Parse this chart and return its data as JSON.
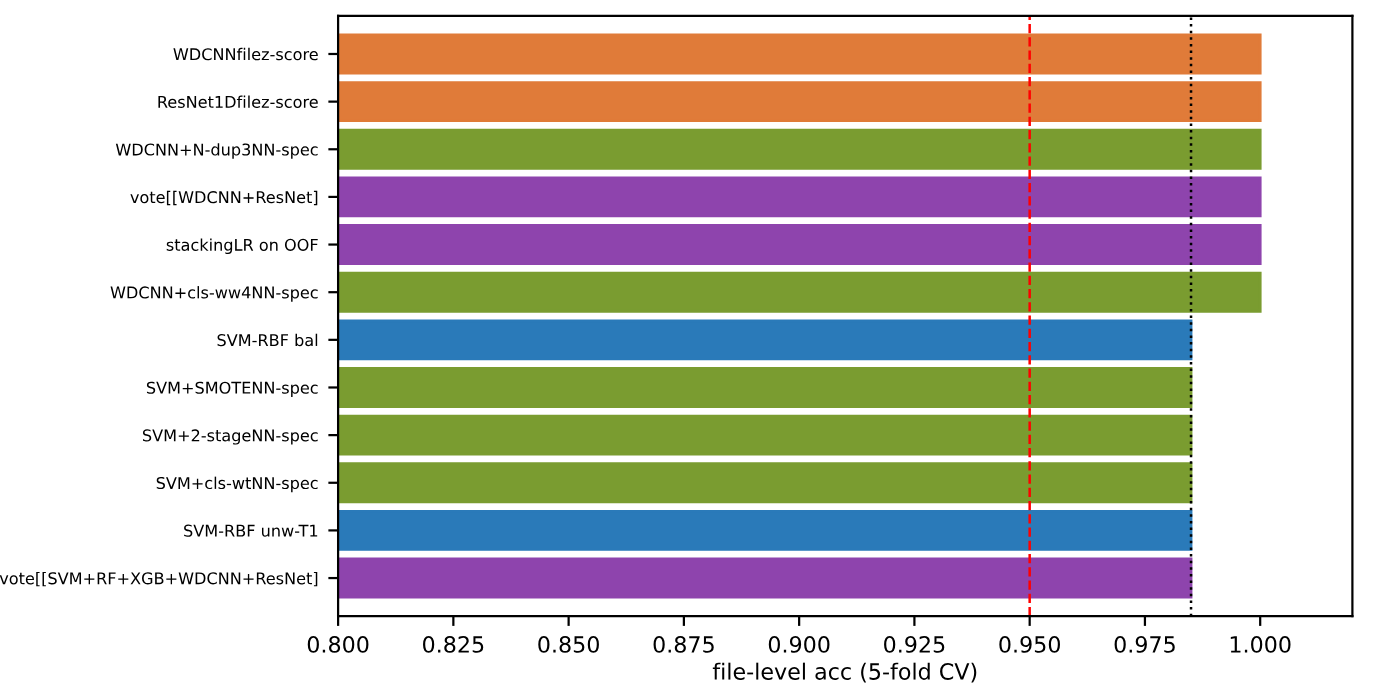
{
  "chart_data": {
    "type": "bar",
    "orientation": "horizontal",
    "xlabel": "file-level acc (5-fold CV)",
    "categories": [
      "WDCNNfilez-score",
      "ResNet1Dfilez-score",
      "WDCNN+N-dup3NN-spec",
      "vote[[WDCNN+ResNet]",
      "stackingLR on OOF",
      "WDCNN+cls-ww4NN-spec",
      "SVM-RBF bal",
      "SVM+SMOTENN-spec",
      "SVM+2-stageNN-spec",
      "SVM+cls-wtNN-spec",
      "SVM-RBF unw-T1",
      "vote[[SVM+RF+XGB+WDCNN+ResNet]"
    ],
    "values": [
      1.0,
      1.0,
      1.0,
      1.0,
      1.0,
      1.0,
      0.985,
      0.985,
      0.985,
      0.985,
      0.985,
      0.985
    ],
    "colors": [
      "#e07b39",
      "#e07b39",
      "#7a9c30",
      "#8e44ad",
      "#8e44ad",
      "#7a9c30",
      "#2a7ab9",
      "#7a9c30",
      "#7a9c30",
      "#7a9c30",
      "#2a7ab9",
      "#8e44ad"
    ],
    "xlim": [
      0.8,
      1.02
    ],
    "xticks": [
      {
        "value": 0.8,
        "label": "0.800"
      },
      {
        "value": 0.825,
        "label": "0.825"
      },
      {
        "value": 0.85,
        "label": "0.850"
      },
      {
        "value": 0.875,
        "label": "0.875"
      },
      {
        "value": 0.9,
        "label": "0.900"
      },
      {
        "value": 0.925,
        "label": "0.925"
      },
      {
        "value": 0.95,
        "label": "0.950"
      },
      {
        "value": 0.975,
        "label": "0.975"
      },
      {
        "value": 1.0,
        "label": "1.000"
      }
    ],
    "ref_lines": [
      {
        "axis": "x",
        "value": 0.95,
        "color": "#ff0000",
        "line_style": "dashed"
      },
      {
        "axis": "x",
        "value": 0.985,
        "color": "#000000",
        "line_style": "dotted"
      }
    ],
    "grid": false,
    "legend": false
  }
}
